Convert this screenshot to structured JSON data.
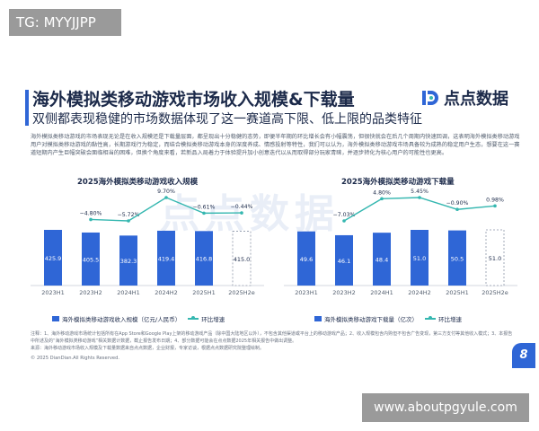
{
  "watermark_tag": "TG: MYYJJPP",
  "watermark_url": "www.aboutpgyule.com",
  "slide": {
    "title": "海外模拟类移动游戏市场收入规模&下载量",
    "subtitle": "双侧都表现稳健的市场数据体现了这一赛道高下限、低上限的品类特征",
    "logo_text": "点点数据",
    "body_text": "海外模拟类移动游戏的市场表现无论是在收入规模还是下载量层面，都呈现出十分稳健的态势，即便半年期的环比增长会有小幅震荡，但很快就会在后几个周期内快速回调，这表明海外模拟类移动游戏用户对模拟类移动游戏的黏性高，长期游戏行为稳定，而结合模拟类移动游戏本身的深度养成、情感投射等特性，我们可以认为，海外模拟类移动游戏市场具备较为成熟的稳定用户生态，想要在这一赛道短期内产生巨幅突破会面临相当的困难，但换个角度来看，若新品入局着力于体验提升加小创意迭代以从而取得部分玩家青睐，并逐步转化为核心用户的可能性也更高。",
    "watermark_text": "点点数据",
    "notes": "注释：1、海外移动游戏市场统计包括所有在App Store和Google Play上架的移动游戏产品（除中国大陆地区以外），不包含其他渠道或平台上的移动游戏产品；2、收入规模包含内购但不包含广告变现，第三方支付等其他收入模式；3、本报告中所述及的“海外模拟类移动游戏”相关数据计数据，截止报告发布日期；4、部分数据可能会在点点数据2025年相关报告中做出调整。",
    "source": "来源：海外移动游戏市场收入规模及下载量数据来自点点数据，企业财报，专家访谈，根据点点数据研究院整理绘制。",
    "copyright": "© 2025 DianDian.All Rights Reserved.",
    "page_number": "8"
  },
  "chart_data": [
    {
      "type": "bar",
      "title": "2025海外模拟类移动游戏收入规模",
      "categories": [
        "2023H1",
        "2023H2",
        "2024H1",
        "2024H2",
        "2025H1",
        "2025H2e"
      ],
      "series": [
        {
          "name": "海外模拟类移动游戏收入规模（亿元/人民币）",
          "values": [
            425.9,
            405.5,
            382.3,
            419.4,
            416.8,
            415.0
          ],
          "value_labels": [
            "425.9",
            "405.5",
            "382.3",
            "419.4",
            "416.8",
            "415.0"
          ],
          "estimated": [
            false,
            false,
            false,
            false,
            false,
            true
          ]
        },
        {
          "name": "环比增速",
          "type": "line",
          "values": [
            null,
            -4.8,
            -5.72,
            9.7,
            -0.61,
            -0.44
          ],
          "value_labels": [
            "",
            "−4.80%",
            "−5.72%",
            "9.70%",
            "−0.61%",
            "−0.44%"
          ]
        }
      ],
      "colors": {
        "bar": "#2f66d6",
        "estimate_fill": "#ffffff",
        "estimate_border": "#8a94a6",
        "line": "#35b7b0"
      }
    },
    {
      "type": "bar",
      "title": "2025海外模拟类移动游戏下载量",
      "categories": [
        "2023H1",
        "2023H2",
        "2024H1",
        "2024H2",
        "2025H1",
        "2025H2e"
      ],
      "series": [
        {
          "name": "海外模拟类移动游戏下载量（亿次）",
          "values": [
            49.6,
            46.1,
            48.4,
            51.0,
            50.5,
            51.0
          ],
          "value_labels": [
            "49.6",
            "46.1",
            "48.4",
            "51.0",
            "50.5",
            "51.0"
          ],
          "estimated": [
            false,
            false,
            false,
            false,
            false,
            true
          ]
        },
        {
          "name": "环比增速",
          "type": "line",
          "values": [
            null,
            -7.03,
            4.8,
            5.45,
            -0.9,
            0.98
          ],
          "value_labels": [
            "",
            "−7.03%",
            "4.80%",
            "5.45%",
            "−0.90%",
            "0.98%"
          ]
        }
      ],
      "colors": {
        "bar": "#2f66d6",
        "estimate_fill": "#ffffff",
        "estimate_border": "#8a94a6",
        "line": "#35b7b0"
      }
    }
  ]
}
